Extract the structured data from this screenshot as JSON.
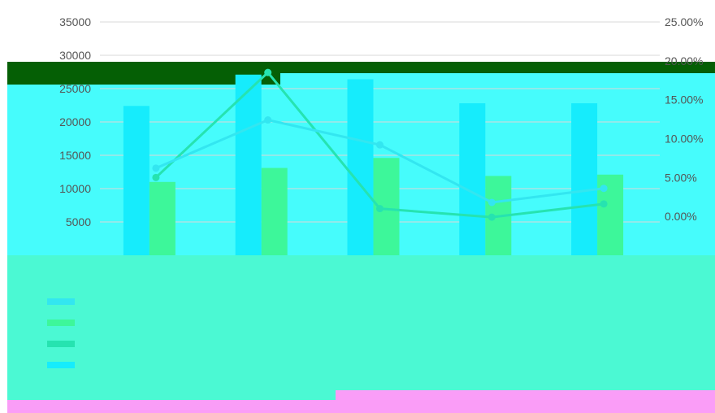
{
  "chart_data": {
    "type": "bar",
    "categories": [
      "",
      "",
      "",
      "",
      ""
    ],
    "y_left": {
      "ticks": [
        "35000",
        "30000",
        "25000",
        "20000",
        "15000",
        "10000",
        "5000"
      ],
      "ylim": [
        0,
        35000
      ]
    },
    "y_right": {
      "ticks": [
        "25.00%",
        "20.00%",
        "15.00%",
        "10.00%",
        "5.00%",
        "0.00%"
      ],
      "ylim": [
        -5,
        25
      ]
    },
    "bar_series": [
      {
        "values": [
          22400,
          27100,
          26400,
          22800,
          22800
        ],
        "color": "#16ecfc"
      },
      {
        "values": [
          11000,
          13100,
          14600,
          11900,
          12100
        ],
        "color": "#3df79a"
      }
    ],
    "line_series": [
      {
        "values": [
          5.0,
          18.5,
          1.0,
          -0.1,
          1.6
        ],
        "color": "#26e3b0"
      },
      {
        "values": [
          6.2,
          12.4,
          9.2,
          1.8,
          3.6
        ],
        "color": "#33e6f0"
      }
    ],
    "grid": true,
    "legend_placement": "left"
  },
  "colors": {
    "dark_band": "#055f05",
    "background_fill": "#46fcfc",
    "lower_fill": "#4bf9d3",
    "footer": "#fa9df7",
    "tick_text": "#555555",
    "gridline": "#d9d9d9"
  }
}
